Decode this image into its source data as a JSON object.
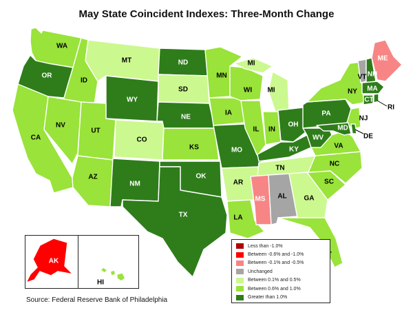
{
  "title": "May State Coincident Indexes: Three-Month Change",
  "source": "Source: Federal Reserve Bank of Philadelphia",
  "colors": {
    "c1": "#b10000",
    "c2": "#ff0000",
    "c3": "#f88585",
    "c4": "#a5a5a5",
    "c5": "#ccf890",
    "c6": "#99e33a",
    "c7": "#2e7d1a"
  },
  "legend": [
    {
      "key": "c1",
      "label": "Less than -1.0%"
    },
    {
      "key": "c2",
      "label": "Between -0.6% and -1.0%"
    },
    {
      "key": "c3",
      "label": "Between -0.1% and -0.5%"
    },
    {
      "key": "c4",
      "label": "Unchanged"
    },
    {
      "key": "c5",
      "label": "Between 0.1% and 0.5%"
    },
    {
      "key": "c6",
      "label": "Between 0.6% and 1.0%"
    },
    {
      "key": "c7",
      "label": "Greater than 1.0%"
    }
  ],
  "states": {
    "WA": "c6",
    "OR": "c7",
    "CA": "c6",
    "ID": "c6",
    "NV": "c6",
    "MT": "c5",
    "WY": "c7",
    "UT": "c6",
    "AZ": "c6",
    "CO": "c5",
    "NM": "c7",
    "ND": "c7",
    "SD": "c5",
    "NE": "c7",
    "KS": "c6",
    "OK": "c7",
    "TX": "c7",
    "MN": "c6",
    "IA": "c6",
    "MO": "c7",
    "AR": "c5",
    "LA": "c6",
    "WI": "c6",
    "IL": "c6",
    "MI": "c5",
    "IN": "c6",
    "OH": "c7",
    "KY": "c7",
    "TN": "c5",
    "MS": "c3",
    "AL": "c4",
    "GA": "c5",
    "FL": "c6",
    "SC": "c6",
    "NC": "c6",
    "VA": "c6",
    "WV": "c7",
    "PA": "c7",
    "NY": "c6",
    "VT": "c4",
    "NH": "c7",
    "ME": "c3",
    "MA": "c7",
    "RI": "c7",
    "CT": "c7",
    "NJ": "c6",
    "DE": "c7",
    "MD": "c7",
    "AK": "c2",
    "HI": "c6"
  },
  "labels": {
    "WA": "WA",
    "OR": "OR",
    "CA": "CA",
    "ID": "ID",
    "NV": "NV",
    "MT": "MT",
    "WY": "WY",
    "UT": "UT",
    "AZ": "AZ",
    "CO": "CO",
    "NM": "NM",
    "ND": "ND",
    "SD": "SD",
    "NE": "NE",
    "KS": "KS",
    "OK": "OK",
    "TX": "TX",
    "MN": "MN",
    "IA": "IA",
    "MO": "MO",
    "AR": "AR",
    "LA": "LA",
    "WI": "WI",
    "IL": "IL",
    "MI": "MI",
    "IN": "IN",
    "OH": "OH",
    "KY": "KY",
    "TN": "TN",
    "MS": "MS",
    "AL": "AL",
    "GA": "GA",
    "FL": "FL",
    "SC": "SC",
    "NC": "NC",
    "VA": "VA",
    "WV": "WV",
    "PA": "PA",
    "NY": "NY",
    "VT": "VT",
    "NH": "NH",
    "ME": "ME",
    "MA": "MA",
    "RI": "RI",
    "CT": "CT",
    "NJ": "NJ",
    "DE": "DE",
    "MD": "MD",
    "AK": "AK",
    "HI": "HI",
    "MI2": "MI"
  }
}
